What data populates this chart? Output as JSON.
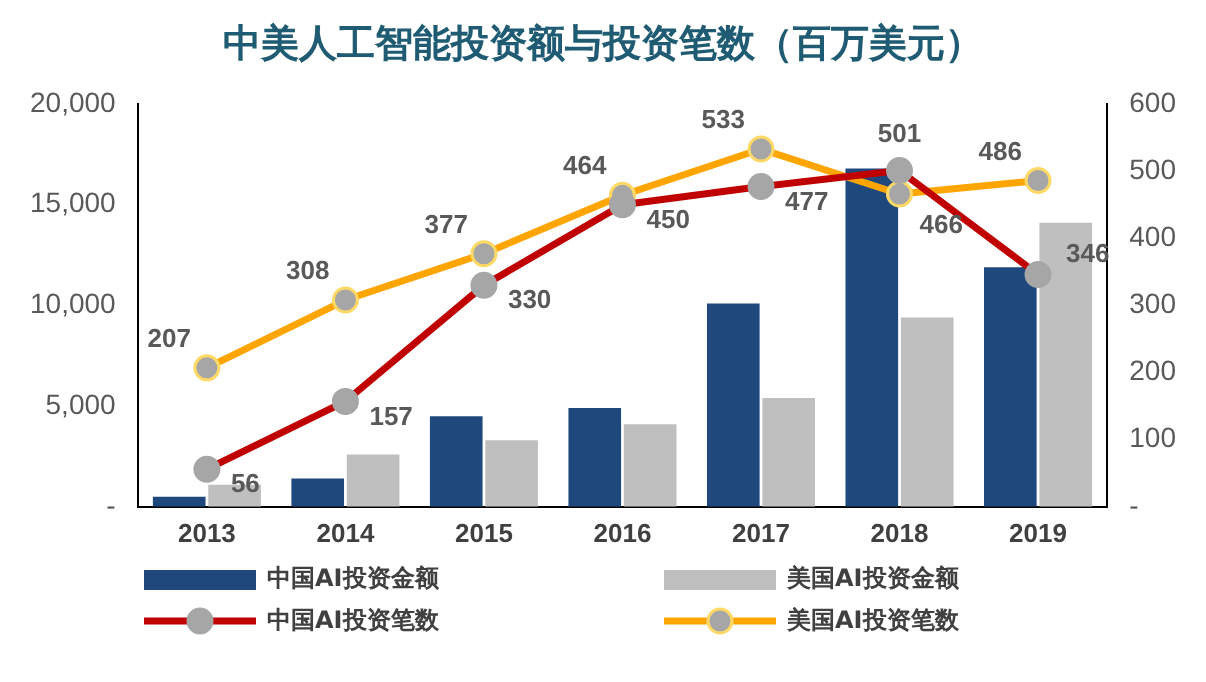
{
  "chart_data": {
    "type": "bar",
    "title": "中美人工智能投资额与投资笔数（百万美元）",
    "categories": [
      "2013",
      "2014",
      "2015",
      "2016",
      "2017",
      "2018",
      "2019"
    ],
    "series": [
      {
        "name": "中国AI投资金额",
        "color": "#1f497d",
        "values": [
          500,
          1400,
          4500,
          4900,
          10100,
          16800,
          11900
        ]
      },
      {
        "name": "美国AI投资金额",
        "color": "#bfbfbf",
        "values": [
          1100,
          2600,
          3300,
          4100,
          5400,
          9400,
          14100
        ]
      },
      {
        "name": "中国AI投资笔数",
        "type": "line",
        "axis": "y2",
        "color": "#c00000",
        "values": [
          56,
          157,
          330,
          450,
          477,
          501,
          346
        ],
        "value_labels": [
          "56",
          "157",
          "330",
          "450",
          "477",
          "501",
          "346"
        ]
      },
      {
        "name": "美国AI投资笔数",
        "type": "line",
        "axis": "y2",
        "color": "#ffa500",
        "values": [
          207,
          308,
          377,
          464,
          533,
          466,
          486
        ],
        "value_labels": [
          "207",
          "308",
          "377",
          "464",
          "533",
          "466",
          "486"
        ]
      }
    ],
    "ylim": [
      0,
      20000
    ],
    "yticks": [
      {
        "value": 0,
        "label": "-"
      },
      {
        "value": 5000,
        "label": "5,000"
      },
      {
        "value": 10000,
        "label": "10,000"
      },
      {
        "value": 15000,
        "label": "15,000"
      },
      {
        "value": 20000,
        "label": "20,000"
      }
    ],
    "y2lim": [
      0,
      600
    ],
    "y2ticks": [
      {
        "value": 0,
        "label": "-"
      },
      100,
      200,
      300,
      400,
      500,
      600
    ],
    "grid": false,
    "legend": "bottom",
    "marker": "circle"
  }
}
